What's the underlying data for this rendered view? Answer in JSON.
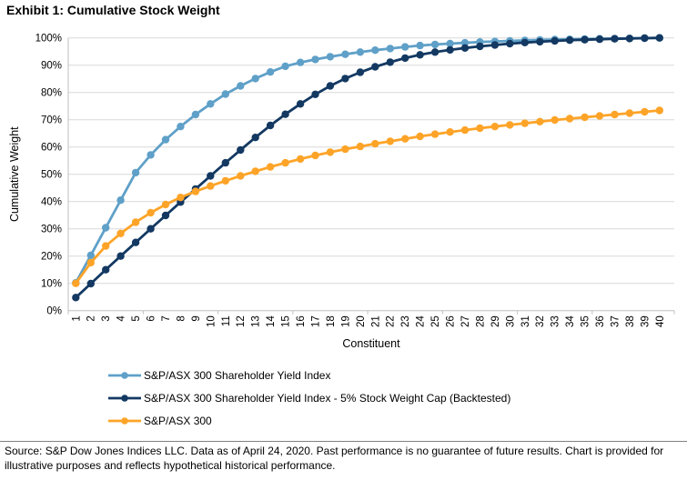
{
  "title": "Exhibit 1: Cumulative Stock Weight",
  "source_note": "Source: S&P Dow Jones Indices LLC. Data as of April 24, 2020. Past performance is no guarantee of future results. Chart is provided for illustrative purposes and reflects hypothetical historical performance.",
  "colors": {
    "light_blue": "#5FA0C8",
    "navy": "#133962",
    "orange": "#FDA428",
    "gridline": "#D9D9D9",
    "axis": "#BFBFBF",
    "divider": "#808080"
  },
  "chart_data": {
    "type": "line",
    "title": "Exhibit 1: Cumulative Stock Weight",
    "xlabel": "Constituent",
    "ylabel": "Cumulative Weight",
    "ylim": [
      0,
      100
    ],
    "grid": true,
    "legend_position": "bottom-left",
    "x_labels": [
      "1",
      "2",
      "3",
      "4",
      "5",
      "6",
      "7",
      "8",
      "9",
      "10",
      "11",
      "12",
      "13",
      "14",
      "15",
      "16",
      "17",
      "18",
      "19",
      "20",
      "21",
      "22",
      "23",
      "24",
      "25",
      "26",
      "27",
      "28",
      "29",
      "30",
      "31",
      "32",
      "33",
      "34",
      "35",
      "36",
      "37",
      "38",
      "39",
      "40"
    ],
    "y_tick_labels": [
      "0%",
      "10%",
      "20%",
      "30%",
      "40%",
      "50%",
      "60%",
      "70%",
      "80%",
      "90%",
      "100%"
    ],
    "series": [
      {
        "name": "S&P/ASX 300 Shareholder Yield Index",
        "color": "#5FA0C8",
        "values": [
          10.2,
          20.3,
          30.4,
          40.5,
          50.6,
          57.1,
          62.7,
          67.5,
          71.9,
          75.8,
          79.4,
          82.4,
          85.1,
          87.5,
          89.6,
          91.0,
          92.1,
          93.1,
          94.0,
          94.8,
          95.5,
          96.1,
          96.7,
          97.2,
          97.6,
          97.9,
          98.2,
          98.5,
          98.7,
          98.9,
          99.1,
          99.25,
          99.4,
          99.5,
          99.6,
          99.7,
          99.78,
          99.85,
          99.93,
          100
        ]
      },
      {
        "name": "S&P/ASX 300 Shareholder Yield Index - 5% Stock Weight Cap (Backtested)",
        "color": "#133962",
        "values": [
          4.8,
          9.9,
          15.0,
          20.0,
          25.0,
          30.0,
          34.9,
          39.8,
          44.6,
          49.4,
          54.2,
          58.9,
          63.5,
          67.9,
          72.0,
          75.8,
          79.3,
          82.4,
          85.1,
          87.4,
          89.4,
          91.1,
          92.6,
          93.8,
          94.8,
          95.6,
          96.3,
          96.9,
          97.4,
          97.9,
          98.3,
          98.6,
          98.9,
          99.15,
          99.35,
          99.5,
          99.65,
          99.78,
          99.9,
          100
        ]
      },
      {
        "name": "S&P/ASX 300",
        "color": "#FDA428",
        "values": [
          10.0,
          17.6,
          23.7,
          28.3,
          32.4,
          35.9,
          38.9,
          41.5,
          43.7,
          45.7,
          47.6,
          49.4,
          51.1,
          52.7,
          54.2,
          55.6,
          56.9,
          58.1,
          59.2,
          60.2,
          61.2,
          62.1,
          63.0,
          63.9,
          64.7,
          65.5,
          66.2,
          66.9,
          67.5,
          68.1,
          68.7,
          69.3,
          69.9,
          70.4,
          70.9,
          71.4,
          71.9,
          72.4,
          72.9,
          73.4
        ]
      }
    ]
  }
}
